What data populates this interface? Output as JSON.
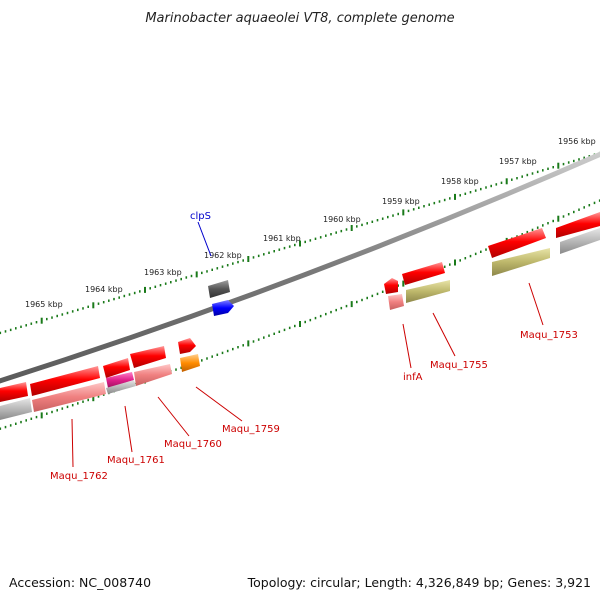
{
  "title": "Marinobacter aquaeolei VT8, complete genome",
  "footer": {
    "accession": "Accession: NC_008740",
    "summary": "Topology: circular; Length: 4,326,849 bp; Genes: 3,921"
  },
  "ruler_labels": [
    "1956 kbp",
    "1957 kbp",
    "1958 kbp",
    "1959 kbp",
    "1960 kbp",
    "1961 kbp",
    "1962 kbp",
    "1963 kbp",
    "1964 kbp",
    "1965 kbp"
  ],
  "gene_labels": [
    {
      "text": "clpS",
      "color": "#0000cc"
    },
    {
      "text": "Maqu_1753",
      "color": "#cc0000"
    },
    {
      "text": "Maqu_1755",
      "color": "#cc0000"
    },
    {
      "text": "infA",
      "color": "#cc0000"
    },
    {
      "text": "Maqu_1759",
      "color": "#cc0000"
    },
    {
      "text": "Maqu_1760",
      "color": "#cc0000"
    },
    {
      "text": "Maqu_1761",
      "color": "#cc0000"
    },
    {
      "text": "Maqu_1762",
      "color": "#cc0000"
    }
  ],
  "colors": {
    "gene_red": "#ff0000",
    "pseudo_pink": "#f08080",
    "gray": "#a0a0a0",
    "olive": "#bdb76b",
    "blue": "#0000ff",
    "dark_gray": "#555555",
    "orange": "#ff8c00",
    "magenta": "#e0208a",
    "tick_green": "#1a7a1a"
  }
}
